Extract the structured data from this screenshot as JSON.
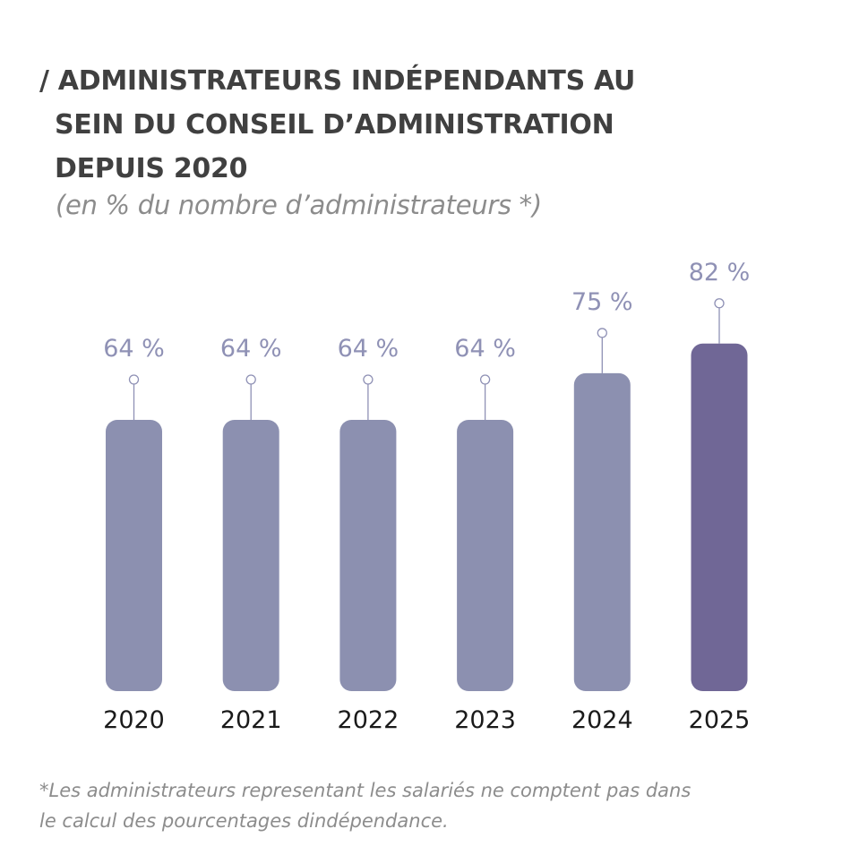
{
  "title": {
    "line1": "/ ADMINISTRATEURS INDÉPENDANTS AU",
    "line2": "SEIN DU CONSEIL D’ADMINISTRATION",
    "line3": "DEPUIS 2020"
  },
  "subtitle": "(en % du nombre d’administrateurs *)",
  "footnote": {
    "line1": "*Les administrateurs representant les salariés ne comptent pas dans",
    "line2": "le calcul des pourcentages dindépendance."
  },
  "colors": {
    "bar": "#8c90b0",
    "highlight_bar": "#706796",
    "value_label": "#8f91b5",
    "year_label": "#1a1a1a",
    "connector": "#8f91b5"
  },
  "chart_data": {
    "type": "bar",
    "categories": [
      "2020",
      "2021",
      "2022",
      "2023",
      "2024",
      "2025"
    ],
    "values": [
      64,
      64,
      64,
      64,
      75,
      82
    ],
    "value_labels": [
      "64 %",
      "64 %",
      "64 %",
      "64 %",
      "75 %",
      "82 %"
    ],
    "highlight_index": 5,
    "unit": "%",
    "grid": false,
    "legend": "none"
  }
}
